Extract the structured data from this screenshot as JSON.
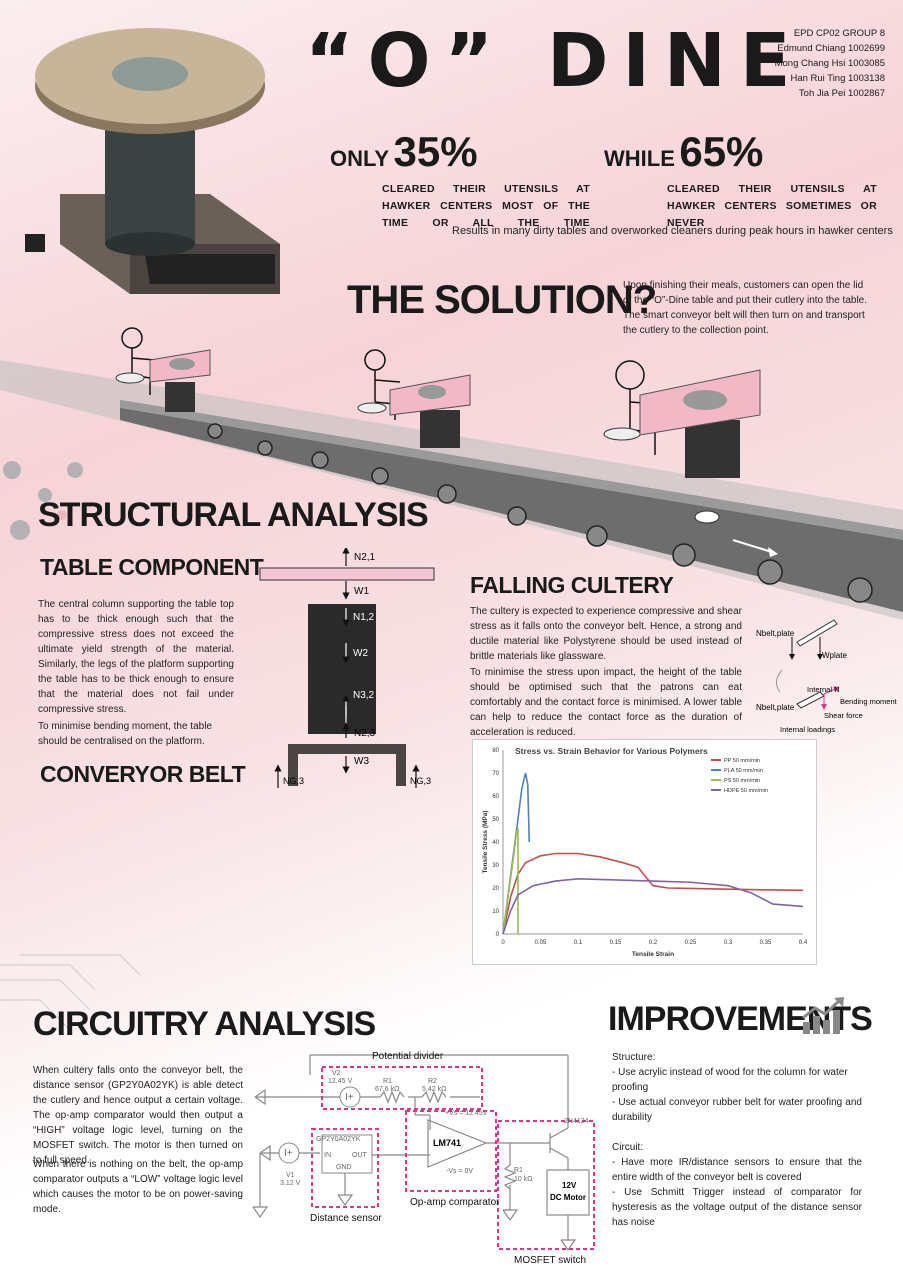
{
  "header": {
    "title": "“O” DINE",
    "group": [
      "EPD CP02 GROUP 8",
      "Edmund Chiang 1002699",
      "Mong Chang Hsi 1003085",
      "Han Rui Ting 1003138",
      "Toh Jia Pei 1002867"
    ]
  },
  "stats": {
    "left_word": "ONLY",
    "left_pct": "35%",
    "left_caption": "CLEARED THEIR UTENSILS AT HAWKER CENTERS MOST OF THE TIME OR ALL THE TIME",
    "right_word": "WHILE",
    "right_pct": "65%",
    "right_caption": "CLEARED THEIR UTENSILS AT HAWKER CENTERS SOMETIMES OR NEVER",
    "result": "Results in many dirty tables and overworked cleaners during peak hours in hawker centers"
  },
  "solution": {
    "heading": "THE SOLUTION?",
    "text": "Upon finishing their meals, customers can open the lid of the “O”-Dine table and put their cutlery into the table. The smart conveyor belt will then turn on and transport the cutlery to the collection point."
  },
  "structural": {
    "heading": "STRUCTURAL ANALYSIS",
    "table_heading": "TABLE COMPONENT",
    "table_text1": "The central column supporting the table top has to be thick enough such that the compressive stress does not exceed the ultimate yield strength of the material. Similarly, the legs of the platform supporting the table has to be thick enough to ensure that the material does not fail under compressive stress.",
    "table_text2": "To minimise bending moment, the table should be centralised on the platform.",
    "conveyor_heading": "CONVERYOR BELT",
    "fbd": {
      "n21": "N2,1",
      "w1": "W1",
      "n12": "N1,2",
      "w2": "W2",
      "n32": "N3,2",
      "n23": "N2,3",
      "w3": "W3",
      "ng_left": "NG,3",
      "ng_right": "NG,3"
    }
  },
  "falling": {
    "heading": "FALLING CULTERY",
    "text1": "The cultery is expected to experience compressive and shear stress as it falls onto the conveyor belt. Hence, a strong and ductile material like Polystyrene should be used instead of brittle materials like glassware.",
    "text2": "To minimise the stress upon impact, the height of the table should be optimised such that the patrons can eat comfortably and the contact force is minimised. A lower table can help to reduce the contact force as the duration of acceleration is reduced.",
    "diag": {
      "nbelt1": "Nbelt,plate",
      "wplate": "Wplate",
      "internal_n": "Internal N",
      "bending": "Bending moment",
      "nbelt2": "Nbelt,plate",
      "shear": "Shear force",
      "internal": "Internal loadings"
    }
  },
  "chart_data": {
    "type": "line",
    "title": "Stress vs. Strain Behavior for Various Polymers",
    "xlabel": "Tensile Strain",
    "ylabel": "Tensile Stress (MPa)",
    "xlim": [
      0,
      0.4
    ],
    "ylim": [
      0,
      80
    ],
    "xticks": [
      "0",
      "0.05",
      "0.1",
      "0.15",
      "0.2",
      "0.25",
      "0.3",
      "0.35",
      "0.4"
    ],
    "yticks": [
      "0",
      "10",
      "20",
      "30",
      "40",
      "50",
      "60",
      "70",
      "80"
    ],
    "legend_position": "top-right",
    "series": [
      {
        "name": "PP 50 mm/min",
        "color": "#c0504d",
        "x": [
          0,
          0.01,
          0.02,
          0.03,
          0.05,
          0.07,
          0.1,
          0.13,
          0.16,
          0.18,
          0.19,
          0.2,
          0.22,
          0.25,
          0.3,
          0.35,
          0.4
        ],
        "y": [
          0,
          16,
          26,
          31,
          34,
          35,
          35,
          33.5,
          31,
          29,
          25,
          21,
          20,
          19.8,
          19.5,
          19.2,
          19
        ]
      },
      {
        "name": "PLA 50 mm/min",
        "color": "#4f81bd",
        "x": [
          0,
          0.01,
          0.02,
          0.025,
          0.03,
          0.033,
          0.035
        ],
        "y": [
          0,
          25,
          50,
          63,
          70,
          65,
          40
        ]
      },
      {
        "name": "PS 50 mm/min",
        "color": "#9bbb59",
        "x": [
          0,
          0.005,
          0.01,
          0.015,
          0.018,
          0.02,
          0.02
        ],
        "y": [
          0,
          12,
          24,
          36,
          44,
          46,
          0
        ]
      },
      {
        "name": "HDPE 50 mm/min",
        "color": "#8064a2",
        "x": [
          0,
          0.01,
          0.02,
          0.04,
          0.07,
          0.1,
          0.15,
          0.2,
          0.25,
          0.3,
          0.33,
          0.36,
          0.4
        ],
        "y": [
          0,
          10,
          17,
          21,
          23,
          24,
          23.5,
          23,
          22.5,
          21,
          18,
          13,
          12
        ]
      }
    ]
  },
  "circuitry": {
    "heading": "CIRCUITRY ANALYSIS",
    "text1": "When cultery falls onto the conveyor belt, the distance sensor (GP2Y0A02YK) is able detect the cutlery and hence output a certain voltage. The op-amp comparator would then output a “HIGH” voltage logic level, turning on the MOSFET switch. The motor is then turned on to full speed.",
    "text2": "When there is nothing on the belt, the op-amp comparator outputs a “LOW” voltage logic level which causes the motor to be on power-saving mode.",
    "labels": {
      "potential_divider": "Potential divider",
      "distance_sensor": "Distance sensor",
      "opamp": "Op-amp comparator",
      "mosfet": "MOSFET switch",
      "v2": "V2",
      "v2_val": "12.45 V",
      "r1": "R1",
      "r1_val": "67.6 kΩ",
      "r2": "R2",
      "r2_val": "5.42 kΩ",
      "vs_pos": "+Vs = 12.45V",
      "vs_neg": "-Vs = 0V",
      "lm741": "LM741",
      "sensor_name": "GP2Y0A02YK",
      "sensor_in": "IN",
      "sensor_out": "OUT",
      "sensor_gnd": "GND",
      "v1": "V1",
      "v1_val": "3.12 V",
      "r3": "R1",
      "r3_val": "10 kΩ",
      "transistor": "2N4124",
      "motor1": "12V",
      "motor2": "DC Motor"
    }
  },
  "improvements": {
    "heading": "IMPROVEMENTS",
    "structure_label": "Structure:",
    "structure": [
      "- Use acrylic instead of wood for the column for water proofing",
      "- Use actual conveyor rubber belt for water proofing and durability"
    ],
    "circuit_label": "Circuit:",
    "circuit": [
      "- Have more IR/distance sensors to ensure that the entire width of the conveyor belt is covered",
      "- Use Schmitt Trigger instead of comparator for hysteresis as the voltage output of the distance sensor has noise"
    ]
  }
}
